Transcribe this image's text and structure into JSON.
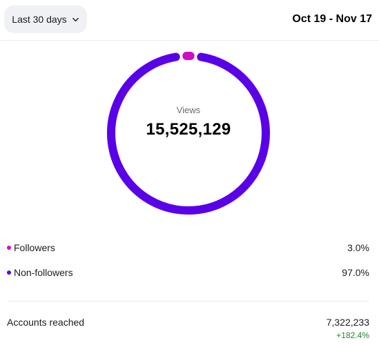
{
  "header": {
    "range_label": "Last 30 days",
    "date_range": "Oct 19 - Nov 17"
  },
  "chart_data": {
    "type": "pie",
    "categories": [
      "Followers",
      "Non-followers"
    ],
    "values": [
      3.0,
      97.0
    ],
    "colors": [
      "#d10bc7",
      "#5a00e8"
    ],
    "center_label": "Views",
    "center_value": "15,525,129"
  },
  "legend": [
    {
      "label": "Followers",
      "value": "3.0%",
      "color": "#d10bc7"
    },
    {
      "label": "Non-followers",
      "value": "97.0%",
      "color": "#5a00e8"
    }
  ],
  "reach": {
    "label": "Accounts reached",
    "value": "7,322,233",
    "delta": "+182.4%"
  }
}
